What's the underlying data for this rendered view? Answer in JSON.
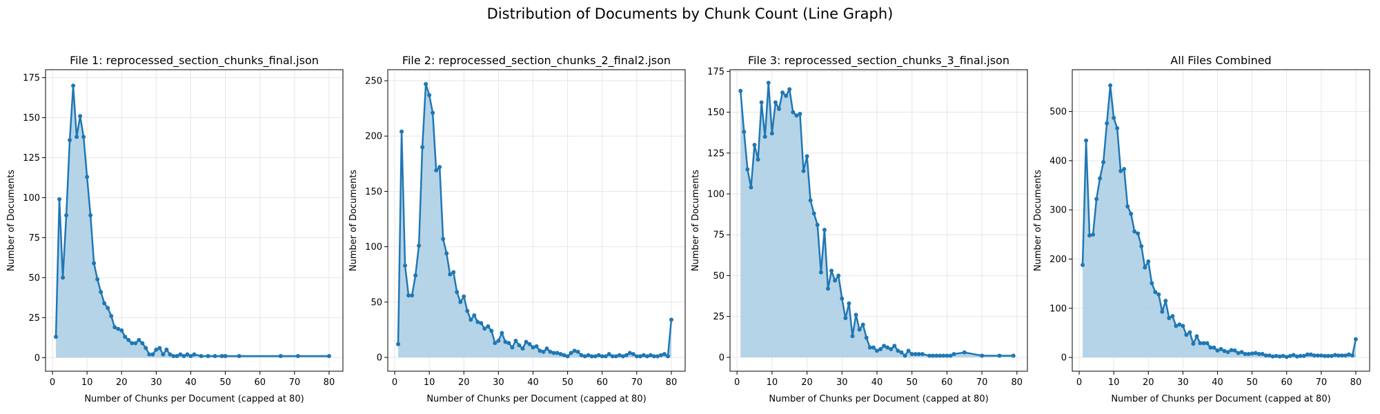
{
  "suptitle": "Distribution of Documents by Chunk Count (Line Graph)",
  "colors": {
    "line": "#1f77b4",
    "fill": "#a9cce3",
    "grid": "#e6e6e6"
  },
  "chart_data": [
    {
      "type": "area",
      "title": "File 1: reprocessed_section_chunks_final.json",
      "xlabel": "Number of Chunks per Document (capped at 80)",
      "ylabel": "Number of Documents",
      "xlim": [
        -2,
        84
      ],
      "ylim": [
        -8.5,
        180
      ],
      "xticks": [
        0,
        10,
        20,
        30,
        40,
        50,
        60,
        70,
        80
      ],
      "yticks": [
        0,
        25,
        50,
        75,
        100,
        125,
        150,
        175
      ],
      "grid": true,
      "x": [
        1,
        2,
        3,
        4,
        5,
        6,
        7,
        8,
        9,
        10,
        11,
        12,
        13,
        14,
        15,
        16,
        17,
        18,
        19,
        20,
        21,
        22,
        23,
        24,
        25,
        26,
        27,
        28,
        29,
        30,
        31,
        32,
        33,
        34,
        35,
        36,
        37,
        38,
        39,
        40,
        41,
        43,
        45,
        47,
        49,
        50,
        54,
        66,
        71,
        80
      ],
      "y": [
        13,
        99,
        50,
        89,
        136,
        170,
        138,
        151,
        138,
        113,
        89,
        59,
        49,
        41,
        34,
        31,
        26,
        19,
        18,
        17,
        13,
        11,
        9,
        9,
        11,
        9,
        6,
        2,
        2,
        5,
        6,
        2,
        5,
        2,
        1,
        1,
        2,
        1,
        2,
        1,
        2,
        1,
        1,
        1,
        1,
        1,
        1,
        1,
        1,
        1
      ]
    },
    {
      "type": "area",
      "title": "File 2: reprocessed_section_chunks_2_final2.json",
      "xlabel": "Number of Chunks per Document (capped at 80)",
      "ylabel": "Number of Documents",
      "xlim": [
        -2,
        84
      ],
      "ylim": [
        -12.5,
        260
      ],
      "xticks": [
        0,
        10,
        20,
        30,
        40,
        50,
        60,
        70,
        80
      ],
      "yticks": [
        0,
        50,
        100,
        150,
        200,
        250
      ],
      "grid": true,
      "x": [
        1,
        2,
        3,
        4,
        5,
        6,
        7,
        8,
        9,
        10,
        11,
        12,
        13,
        14,
        15,
        16,
        17,
        18,
        19,
        20,
        21,
        22,
        23,
        24,
        25,
        26,
        27,
        28,
        29,
        30,
        31,
        32,
        33,
        34,
        35,
        36,
        37,
        38,
        39,
        40,
        41,
        42,
        43,
        44,
        45,
        46,
        47,
        48,
        49,
        50,
        51,
        52,
        53,
        54,
        55,
        56,
        57,
        58,
        59,
        60,
        61,
        62,
        63,
        64,
        65,
        66,
        67,
        68,
        69,
        70,
        71,
        72,
        73,
        74,
        75,
        76,
        77,
        78,
        79,
        80
      ],
      "y": [
        12,
        204,
        83,
        56,
        56,
        74,
        101,
        190,
        247,
        237,
        221,
        169,
        172,
        107,
        94,
        75,
        77,
        59,
        50,
        55,
        42,
        34,
        38,
        32,
        31,
        26,
        28,
        24,
        13,
        15,
        22,
        14,
        13,
        9,
        15,
        11,
        8,
        14,
        12,
        9,
        10,
        6,
        5,
        8,
        5,
        4,
        4,
        3,
        2,
        1,
        4,
        6,
        5,
        2,
        1,
        2,
        1,
        1,
        2,
        1,
        1,
        3,
        1,
        1,
        2,
        1,
        2,
        4,
        3,
        1,
        1,
        2,
        1,
        2,
        1,
        1,
        2,
        3,
        1,
        34
      ]
    },
    {
      "type": "area",
      "title": "File 3: reprocessed_section_chunks_3_final.json",
      "xlabel": "Number of Chunks per Document (capped at 80)",
      "ylabel": "Number of Documents",
      "xlim": [
        -2,
        83
      ],
      "ylim": [
        -8.5,
        176
      ],
      "xticks": [
        0,
        10,
        20,
        30,
        40,
        50,
        60,
        70,
        80
      ],
      "yticks": [
        0,
        25,
        50,
        75,
        100,
        125,
        150,
        175
      ],
      "grid": true,
      "x": [
        1,
        2,
        3,
        4,
        5,
        6,
        7,
        8,
        9,
        10,
        11,
        12,
        13,
        14,
        15,
        16,
        17,
        18,
        19,
        20,
        21,
        22,
        23,
        24,
        25,
        26,
        27,
        28,
        29,
        30,
        31,
        32,
        33,
        34,
        35,
        36,
        37,
        38,
        39,
        40,
        41,
        42,
        43,
        44,
        45,
        46,
        47,
        48,
        49,
        50,
        51,
        52,
        53,
        55,
        56,
        57,
        58,
        59,
        60,
        61,
        62,
        65,
        70,
        75,
        79
      ],
      "y": [
        163,
        138,
        115,
        104,
        130,
        121,
        156,
        135,
        168,
        137,
        156,
        152,
        162,
        160,
        164,
        150,
        148,
        149,
        114,
        123,
        96,
        88,
        81,
        52,
        78,
        42,
        53,
        47,
        50,
        36,
        24,
        33,
        13,
        26,
        17,
        20,
        12,
        6,
        6,
        4,
        5,
        7,
        6,
        5,
        7,
        4,
        3,
        1,
        4,
        2,
        2,
        2,
        2,
        1,
        1,
        1,
        1,
        1,
        1,
        1,
        2,
        3,
        1,
        1,
        1
      ]
    },
    {
      "type": "area",
      "title": "All Files Combined",
      "xlabel": "Number of Chunks per Document (capped at 80)",
      "ylabel": "Number of Documents",
      "xlim": [
        -2,
        84
      ],
      "ylim": [
        -28,
        585
      ],
      "xticks": [
        0,
        10,
        20,
        30,
        40,
        50,
        60,
        70,
        80
      ],
      "yticks": [
        0,
        100,
        200,
        300,
        400,
        500
      ],
      "grid": true,
      "x": [
        1,
        2,
        3,
        4,
        5,
        6,
        7,
        8,
        9,
        10,
        11,
        12,
        13,
        14,
        15,
        16,
        17,
        18,
        19,
        20,
        21,
        22,
        23,
        24,
        25,
        26,
        27,
        28,
        29,
        30,
        31,
        32,
        33,
        34,
        35,
        36,
        37,
        38,
        39,
        40,
        41,
        42,
        43,
        44,
        45,
        46,
        47,
        48,
        49,
        50,
        51,
        52,
        53,
        54,
        55,
        56,
        57,
        58,
        59,
        60,
        61,
        62,
        63,
        64,
        65,
        66,
        67,
        68,
        69,
        70,
        71,
        72,
        73,
        74,
        75,
        76,
        77,
        78,
        79,
        80
      ],
      "y": [
        188,
        441,
        248,
        250,
        322,
        364,
        397,
        476,
        553,
        487,
        466,
        379,
        383,
        307,
        292,
        256,
        252,
        226,
        183,
        195,
        151,
        133,
        128,
        93,
        115,
        80,
        84,
        64,
        67,
        64,
        46,
        51,
        28,
        43,
        29,
        29,
        29,
        20,
        20,
        14,
        17,
        13,
        11,
        15,
        14,
        9,
        11,
        7,
        7,
        8,
        9,
        7,
        7,
        4,
        4,
        2,
        3,
        2,
        3,
        1,
        3,
        5,
        2,
        3,
        3,
        6,
        6,
        4,
        4,
        4,
        3,
        3,
        3,
        5,
        4,
        4,
        4,
        6,
        4,
        37
      ]
    }
  ]
}
